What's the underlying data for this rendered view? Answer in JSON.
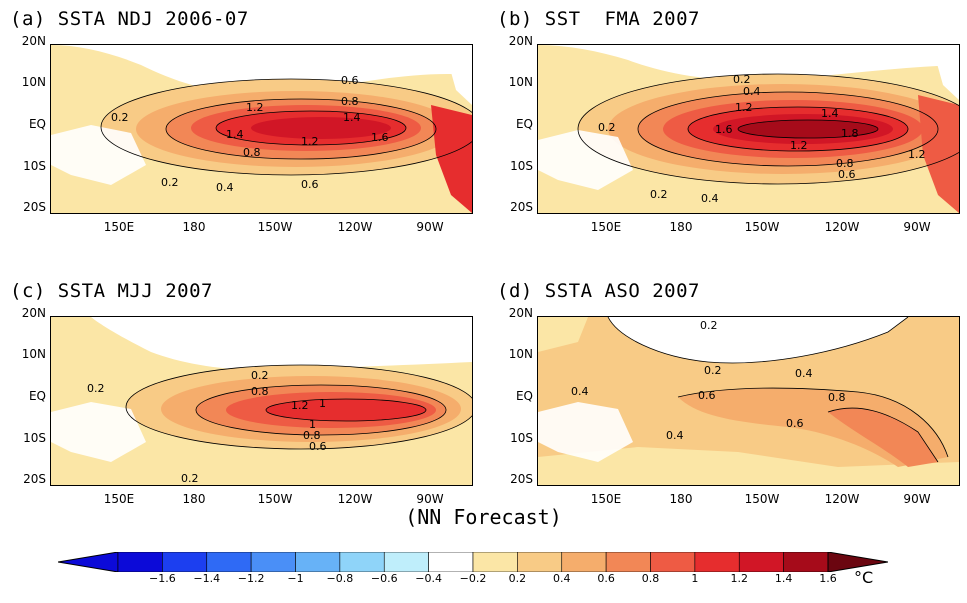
{
  "panels": [
    {
      "title": "(a) SSTA NDJ 2006-07",
      "contour_labels": [
        "0.6",
        "0.8",
        "1.2",
        "1.4",
        "1.4",
        "1.2",
        "1.6",
        "0.8",
        "0.2",
        "0.2",
        "0.4",
        "0.6"
      ],
      "max_level": 1.6
    },
    {
      "title": "(b) SST  FMA 2007",
      "contour_labels": [
        "0.2",
        "0.4",
        "1.2",
        "1.4",
        "1.6",
        "1.2",
        "1.8",
        "1.2",
        "0.8",
        "0.6",
        "0.2",
        "0.2",
        "0.4"
      ],
      "max_level": 1.8
    },
    {
      "title": "(c) SSTA MJJ 2007",
      "contour_labels": [
        "0.2",
        "0.8",
        "1.2",
        "1",
        "1",
        "0.8",
        "0.6",
        "0.2",
        "0.2"
      ],
      "max_level": 1.2
    },
    {
      "title": "(d) SSTA ASO 2007",
      "contour_labels": [
        "0.2",
        "0.2",
        "0.4",
        "0.4",
        "0.6",
        "0.8",
        "0.4",
        "0.6"
      ],
      "max_level": 0.8
    }
  ],
  "lat_labels": [
    "20N",
    "10N",
    "EQ",
    "10S",
    "20S"
  ],
  "lon_labels": [
    "150E",
    "180",
    "150W",
    "120W",
    "90W"
  ],
  "subtitle": "(NN Forecast)",
  "colorbar": {
    "labels": [
      "-1.6",
      "-1.4",
      "-1.2",
      "-1",
      "-0.8",
      "-0.6",
      "-0.4",
      "-0.2",
      "0.2",
      "0.4",
      "0.6",
      "0.8",
      "1",
      "1.2",
      "1.4",
      "1.6"
    ],
    "colors": [
      "#0c0ad8",
      "#1c3ff0",
      "#2f6af5",
      "#4a8ff7",
      "#67b2f7",
      "#8fd4f9",
      "#bfeefb",
      "#ffffff",
      "#fbe6a6",
      "#f8cb86",
      "#f5ad6c",
      "#f28756",
      "#ee5b44",
      "#e62d2e",
      "#d11626",
      "#a60b1a"
    ],
    "unit": "°C"
  }
}
